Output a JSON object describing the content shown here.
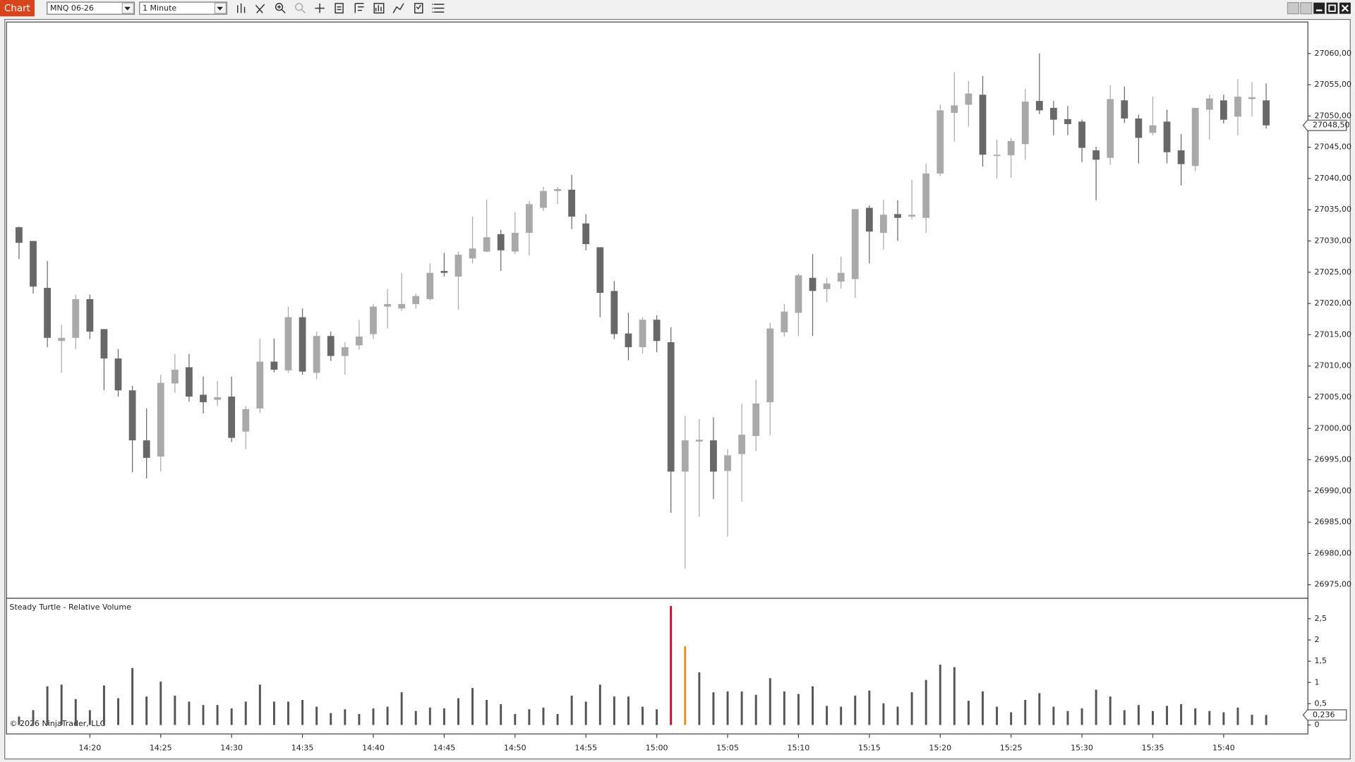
{
  "toolbar": {
    "tab": "Chart",
    "instrument": "MNQ 06-26",
    "interval": "1 Minute"
  },
  "chart_data": [
    {
      "type": "candlestick",
      "categories": [
        null,
        null,
        null,
        null,
        null,
        "14:20",
        null,
        null,
        null,
        null,
        "14:25",
        null,
        null,
        null,
        null,
        "14:30",
        null,
        null,
        null,
        null,
        "14:35",
        null,
        null,
        null,
        null,
        "14:40",
        null,
        null,
        null,
        null,
        "14:45",
        null,
        null,
        null,
        null,
        "14:50",
        null,
        null,
        null,
        null,
        "14:55",
        null,
        null,
        null,
        null,
        "15:00",
        null,
        null,
        null,
        null,
        "15:05",
        null,
        null,
        null,
        null,
        "15:10",
        null,
        null,
        null,
        null,
        "15:15",
        null,
        null,
        null,
        null,
        "15:20",
        null,
        null,
        null,
        null,
        "15:25",
        null,
        null,
        null,
        null,
        "15:30",
        null,
        null,
        null,
        null,
        "15:35",
        null,
        null,
        null,
        null,
        "15:40",
        null,
        null,
        null
      ],
      "open": [
        27032.2,
        27030.0,
        27022.5,
        27014.0,
        27014.5,
        27020.7,
        27015.9,
        27011.2,
        27006.1,
        26998.1,
        26995.5,
        27007.2,
        27009.8,
        27005.4,
        27004.6,
        27005.1,
        26999.5,
        27003.2,
        27010.7,
        27009.3,
        27017.8,
        27008.9,
        27014.8,
        27011.6,
        27013.3,
        27015.1,
        27019.5,
        27019.2,
        27019.9,
        27020.7,
        27025.2,
        27024.3,
        27027.2,
        27028.3,
        27031.1,
        27028.3,
        27031.3,
        27035.3,
        27038.0,
        27038.2,
        27032.8,
        27029.0,
        27022.0,
        27015.2,
        27013.0,
        27017.4,
        27013.8,
        26993.1,
        26997.9,
        26998.1,
        26993.2,
        26995.9,
        26998.8,
        27004.2,
        27015.4,
        27018.5,
        27024.1,
        27022.3,
        27023.5,
        27023.9,
        27035.3,
        27031.3,
        27034.3,
        27033.9,
        27033.7,
        27040.8,
        27050.5,
        27051.8,
        27053.4,
        27043.6,
        27043.7,
        27045.5,
        27052.4,
        27051.3,
        27049.5,
        27049.1,
        27044.5,
        27043.3,
        27052.5,
        27049.6,
        27047.3,
        27049.1,
        27044.5,
        27042.0,
        27051.0,
        27052.5,
        27049.9,
        27052.7,
        27052.5
      ],
      "high": [
        27032.3,
        27030.0,
        27026.8,
        27016.6,
        27021.4,
        27021.4,
        27015.9,
        27012.7,
        27006.8,
        27003.2,
        27008.6,
        27011.9,
        27011.9,
        27008.3,
        27007.6,
        27008.3,
        27003.6,
        27014.4,
        27014.4,
        27019.5,
        27019.2,
        27015.5,
        27015.5,
        27013.8,
        27017.4,
        27019.9,
        27022.3,
        27024.9,
        27021.6,
        27026.4,
        27028.1,
        27028.3,
        27033.9,
        27036.6,
        27031.8,
        27034.6,
        27036.4,
        27038.7,
        27038.6,
        27040.6,
        27034.3,
        27029.0,
        27023.6,
        27018.5,
        27017.8,
        27018.1,
        27016.2,
        27002.0,
        27001.5,
        27001.8,
        26996.7,
        27004.0,
        27007.8,
        27016.9,
        27019.9,
        27024.8,
        27027.9,
        27024.1,
        27027.5,
        27035.1,
        27035.7,
        27036.6,
        27036.5,
        27039.8,
        27042.4,
        27051.8,
        27057.0,
        27055.6,
        27056.4,
        27046.2,
        27046.5,
        27054.3,
        27060.0,
        27052.4,
        27051.6,
        27049.4,
        27045.1,
        27054.9,
        27054.7,
        27050.2,
        27053.1,
        27051.0,
        27047.1,
        27051.3,
        27053.4,
        27053.4,
        27055.9,
        27055.4,
        27055.2
      ],
      "low": [
        27027.1,
        27021.6,
        27013.0,
        27008.9,
        27012.7,
        27014.3,
        27006.1,
        27005.1,
        26993.0,
        26992.0,
        26993.1,
        27005.7,
        27004.3,
        27002.4,
        27003.6,
        26997.8,
        26996.7,
        27002.5,
        27009.0,
        27008.9,
        27008.6,
        27007.9,
        27010.8,
        27008.6,
        27012.6,
        27014.3,
        27016.0,
        27018.8,
        27019.2,
        27020.5,
        27024.3,
        27019.0,
        27026.4,
        27028.2,
        27025.2,
        27027.9,
        27027.7,
        27034.8,
        27035.9,
        27031.9,
        27028.5,
        27017.8,
        27014.3,
        27010.9,
        27012.0,
        27012.2,
        26986.5,
        26977.6,
        26985.9,
        26988.7,
        26982.7,
        26988.3,
        26996.4,
        26998.9,
        27014.7,
        27014.8,
        27014.8,
        27020.2,
        27022.4,
        27020.9,
        27026.4,
        27028.6,
        27030.0,
        27033.5,
        27031.3,
        27040.4,
        27045.9,
        27048.3,
        27041.9,
        27040.0,
        27040.1,
        27043.0,
        27050.3,
        27046.9,
        27046.9,
        27042.6,
        27036.5,
        27042.2,
        27048.9,
        27042.4,
        27046.9,
        27042.4,
        27038.9,
        27041.2,
        27046.2,
        27048.8,
        27046.9,
        27049.9,
        27048.0
      ],
      "close": [
        27029.7,
        27022.7,
        27014.5,
        27014.5,
        27020.7,
        27015.5,
        27011.2,
        27006.1,
        26998.1,
        26995.3,
        27007.3,
        27009.4,
        27005.1,
        27004.2,
        27005.0,
        26998.5,
        27003.1,
        27010.7,
        27009.4,
        27017.8,
        27009.1,
        27014.8,
        27011.6,
        27013.0,
        27014.7,
        27019.5,
        27019.9,
        27019.9,
        27021.2,
        27024.9,
        27024.9,
        27027.8,
        27028.8,
        27030.6,
        27028.5,
        27031.3,
        27035.9,
        27038.0,
        27038.3,
        27033.9,
        27029.5,
        27021.7,
        27015.1,
        27013.0,
        27017.4,
        27014.0,
        26993.1,
        26998.1,
        26998.2,
        26993.1,
        26995.7,
        26999.0,
        27004.0,
        27016.0,
        27018.7,
        27024.5,
        27022.0,
        27023.2,
        27024.9,
        27035.1,
        27031.5,
        27034.2,
        27033.7,
        27034.2,
        27040.8,
        27050.9,
        27051.7,
        27053.6,
        27043.8,
        27043.8,
        27046.0,
        27052.3,
        27050.9,
        27049.4,
        27048.7,
        27044.9,
        27043.0,
        27052.7,
        27049.6,
        27046.5,
        27048.5,
        27044.2,
        27042.3,
        27051.3,
        27052.8,
        27049.4,
        27053.1,
        27053.0,
        27048.5
      ],
      "up_color": "#a9a9a9",
      "down_color": "#686868",
      "ylim": [
        26972.9,
        27065.1
      ],
      "yticks": [
        {
          "value": 26975,
          "label": "26975,00"
        },
        {
          "value": 26980,
          "label": "26980,00"
        },
        {
          "value": 26985,
          "label": "26985,00"
        },
        {
          "value": 26990,
          "label": "26990,00"
        },
        {
          "value": 26995,
          "label": "26995,00"
        },
        {
          "value": 27000,
          "label": "27000,00"
        },
        {
          "value": 27005,
          "label": "27005,00"
        },
        {
          "value": 27010,
          "label": "27010,00"
        },
        {
          "value": 27015,
          "label": "27015,00"
        },
        {
          "value": 27020,
          "label": "27020,00"
        },
        {
          "value": 27025,
          "label": "27025,00"
        },
        {
          "value": 27030,
          "label": "27030,00"
        },
        {
          "value": 27035,
          "label": "27035,00"
        },
        {
          "value": 27040,
          "label": "27040,00"
        },
        {
          "value": 27045,
          "label": "27045,00"
        },
        {
          "value": 27050,
          "label": "27050,00"
        },
        {
          "value": 27055,
          "label": "27055,00"
        },
        {
          "value": 27060,
          "label": "27060,00"
        }
      ],
      "last_value_label": "27048,50"
    },
    {
      "type": "bar",
      "title": "Steady Turtle - Relative Volume",
      "annotation": "© 2026 NinjaTrader, LLC",
      "values": [
        0.2,
        0.35,
        0.91,
        0.95,
        0.61,
        0.35,
        0.93,
        0.63,
        1.34,
        0.67,
        1.02,
        0.69,
        0.55,
        0.47,
        0.47,
        0.39,
        0.55,
        0.95,
        0.55,
        0.55,
        0.59,
        0.43,
        0.28,
        0.37,
        0.26,
        0.39,
        0.43,
        0.77,
        0.33,
        0.41,
        0.39,
        0.63,
        0.87,
        0.59,
        0.49,
        0.26,
        0.37,
        0.41,
        0.26,
        0.69,
        0.55,
        0.95,
        0.67,
        0.67,
        0.43,
        0.37,
        2.8,
        1.85,
        1.24,
        0.77,
        0.79,
        0.79,
        0.71,
        1.1,
        0.79,
        0.73,
        0.91,
        0.45,
        0.43,
        0.69,
        0.81,
        0.51,
        0.43,
        0.77,
        1.06,
        1.42,
        1.36,
        0.57,
        0.79,
        0.43,
        0.3,
        0.59,
        0.75,
        0.43,
        0.33,
        0.39,
        0.83,
        0.67,
        0.35,
        0.47,
        0.33,
        0.45,
        0.49,
        0.39,
        0.33,
        0.3,
        0.41,
        0.24,
        0.236
      ],
      "color": "#555555",
      "point_colors": {
        "46": "#c8102e",
        "47": "#e8901a"
      },
      "ylim": [
        -0.22,
        2.97
      ],
      "yticks": [
        0,
        {
          "value": 0.5,
          "label": "0,5"
        },
        1,
        {
          "value": 1.5,
          "label": "1,5"
        },
        2,
        {
          "value": 2.5,
          "label": "2,5"
        }
      ],
      "last_value_label": "0,236"
    }
  ]
}
